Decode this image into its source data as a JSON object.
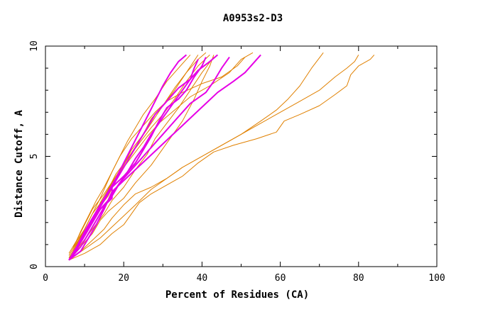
{
  "chart_data": {
    "type": "line",
    "title": "A0953s2-D3",
    "xlabel": "Percent of Residues (CA)",
    "ylabel": "Distance Cutoff, A",
    "xlim": [
      0,
      100
    ],
    "ylim": [
      0,
      10
    ],
    "x_major_ticks": [
      0,
      20,
      40,
      60,
      80,
      100
    ],
    "x_tick_labels": [
      "0",
      "20",
      "40",
      "60",
      "80",
      "100"
    ],
    "y_major_ticks": [
      0,
      5,
      10
    ],
    "y_tick_labels": [
      "0",
      "5",
      "10"
    ],
    "x_minor_step": 10,
    "y_minor_step": 1,
    "colors": {
      "highlight": "#e600e6",
      "other": "#e08000",
      "frame": "#000000"
    },
    "series": [
      {
        "name": "orange-1",
        "group": "other",
        "points": [
          [
            6,
            0.4
          ],
          [
            9,
            0.9
          ],
          [
            12,
            1.5
          ],
          [
            14,
            2.1
          ],
          [
            16,
            2.5
          ],
          [
            20,
            3.1
          ],
          [
            23,
            3.8
          ],
          [
            27,
            4.6
          ],
          [
            31,
            5.6
          ],
          [
            35,
            6.6
          ],
          [
            38,
            7.6
          ],
          [
            40,
            8.4
          ],
          [
            42,
            9.1
          ],
          [
            43,
            9.6
          ]
        ]
      },
      {
        "name": "orange-2",
        "group": "other",
        "points": [
          [
            6,
            0.6
          ],
          [
            8,
            1.2
          ],
          [
            10,
            1.9
          ],
          [
            12,
            2.6
          ],
          [
            15,
            3.3
          ],
          [
            18,
            4.1
          ],
          [
            21,
            4.9
          ],
          [
            24,
            5.7
          ],
          [
            27,
            6.5
          ],
          [
            30,
            7.3
          ],
          [
            33,
            8.1
          ],
          [
            36,
            8.8
          ],
          [
            39,
            9.4
          ],
          [
            41,
            9.7
          ]
        ]
      },
      {
        "name": "orange-3",
        "group": "other",
        "points": [
          [
            7,
            0.8
          ],
          [
            9,
            1.6
          ],
          [
            11,
            2.3
          ],
          [
            13,
            3.0
          ],
          [
            15,
            3.6
          ],
          [
            17,
            4.3
          ],
          [
            19,
            5.0
          ],
          [
            21,
            5.7
          ],
          [
            23,
            6.3
          ],
          [
            25,
            6.9
          ],
          [
            28,
            7.6
          ],
          [
            31,
            8.4
          ],
          [
            34,
            9.0
          ],
          [
            37,
            9.6
          ]
        ]
      },
      {
        "name": "orange-4",
        "group": "other",
        "points": [
          [
            6,
            0.5
          ],
          [
            8,
            1.1
          ],
          [
            11,
            1.8
          ],
          [
            13,
            2.5
          ],
          [
            16,
            3.2
          ],
          [
            18,
            3.9
          ],
          [
            20,
            4.6
          ],
          [
            22,
            5.3
          ],
          [
            25,
            6.0
          ],
          [
            27,
            6.7
          ],
          [
            30,
            7.3
          ],
          [
            33,
            8.0
          ],
          [
            36,
            8.8
          ],
          [
            39,
            9.6
          ]
        ]
      },
      {
        "name": "orange-5",
        "group": "other",
        "points": [
          [
            7,
            0.7
          ],
          [
            9,
            1.4
          ],
          [
            12,
            2.1
          ],
          [
            14,
            2.9
          ],
          [
            16,
            3.5
          ],
          [
            18,
            4.2
          ],
          [
            21,
            4.9
          ],
          [
            24,
            5.6
          ],
          [
            27,
            6.3
          ],
          [
            30,
            6.9
          ],
          [
            33,
            7.6
          ],
          [
            36,
            8.4
          ],
          [
            39,
            9.1
          ],
          [
            42,
            9.6
          ]
        ]
      },
      {
        "name": "orange-6",
        "group": "other",
        "points": [
          [
            6,
            0.3
          ],
          [
            9,
            1.0
          ],
          [
            12,
            1.7
          ],
          [
            15,
            2.4
          ],
          [
            17,
            3.0
          ],
          [
            20,
            3.6
          ],
          [
            23,
            4.4
          ],
          [
            26,
            5.1
          ],
          [
            28,
            5.8
          ],
          [
            31,
            6.5
          ],
          [
            34,
            7.2
          ],
          [
            37,
            8.0
          ],
          [
            40,
            8.8
          ],
          [
            43,
            9.5
          ]
        ]
      },
      {
        "name": "orange-7",
        "group": "other",
        "points": [
          [
            7,
            0.9
          ],
          [
            10,
            1.7
          ],
          [
            12,
            2.4
          ],
          [
            15,
            3.1
          ],
          [
            17,
            3.8
          ],
          [
            20,
            4.5
          ],
          [
            23,
            5.2
          ],
          [
            26,
            5.9
          ],
          [
            29,
            6.5
          ],
          [
            33,
            7.1
          ],
          [
            37,
            7.7
          ],
          [
            42,
            8.2
          ],
          [
            47,
            8.8
          ],
          [
            50,
            9.4
          ],
          [
            53,
            9.7
          ]
        ]
      },
      {
        "name": "orange-8",
        "group": "other",
        "points": [
          [
            6,
            0.4
          ],
          [
            8,
            1.0
          ],
          [
            10,
            1.7
          ],
          [
            12,
            2.4
          ],
          [
            14,
            3.1
          ],
          [
            17,
            4.3
          ],
          [
            19,
            5.0
          ],
          [
            22,
            5.8
          ],
          [
            25,
            6.4
          ],
          [
            28,
            7.0
          ],
          [
            31,
            7.5
          ],
          [
            35,
            7.9
          ],
          [
            40,
            8.3
          ],
          [
            45,
            8.6
          ],
          [
            49,
            9.1
          ],
          [
            51,
            9.5
          ]
        ]
      },
      {
        "name": "orange-9",
        "group": "other",
        "points": [
          [
            6,
            0.3
          ],
          [
            10,
            0.8
          ],
          [
            14,
            1.3
          ],
          [
            17,
            1.8
          ],
          [
            20,
            2.3
          ],
          [
            23,
            2.8
          ],
          [
            27,
            3.5
          ],
          [
            31,
            4.0
          ],
          [
            35,
            4.5
          ],
          [
            40,
            5.0
          ],
          [
            45,
            5.5
          ],
          [
            50,
            6.0
          ],
          [
            55,
            6.6
          ],
          [
            59,
            7.1
          ],
          [
            62,
            7.6
          ],
          [
            65,
            8.2
          ],
          [
            68,
            9.0
          ],
          [
            71,
            9.7
          ]
        ]
      },
      {
        "name": "orange-10",
        "group": "other",
        "points": [
          [
            6,
            0.3
          ],
          [
            9,
            0.7
          ],
          [
            12,
            1.2
          ],
          [
            15,
            1.7
          ],
          [
            17,
            2.2
          ],
          [
            20,
            2.8
          ],
          [
            23,
            3.3
          ],
          [
            27,
            3.6
          ],
          [
            31,
            4.0
          ],
          [
            35,
            4.5
          ],
          [
            40,
            5.0
          ],
          [
            45,
            5.5
          ],
          [
            50,
            6.0
          ],
          [
            55,
            6.5
          ],
          [
            60,
            7.0
          ],
          [
            65,
            7.5
          ],
          [
            70,
            8.0
          ],
          [
            74,
            8.6
          ],
          [
            77,
            9.0
          ],
          [
            79,
            9.3
          ],
          [
            80,
            9.6
          ]
        ]
      },
      {
        "name": "orange-11",
        "group": "other",
        "points": [
          [
            6,
            0.3
          ],
          [
            10,
            0.6
          ],
          [
            14,
            1.0
          ],
          [
            17,
            1.5
          ],
          [
            20,
            1.9
          ],
          [
            22,
            2.4
          ],
          [
            24,
            2.9
          ],
          [
            27,
            3.3
          ],
          [
            31,
            3.7
          ],
          [
            35,
            4.1
          ],
          [
            39,
            4.7
          ],
          [
            43,
            5.2
          ],
          [
            48,
            5.5
          ],
          [
            54,
            5.8
          ],
          [
            59,
            6.1
          ],
          [
            61,
            6.6
          ],
          [
            65,
            6.9
          ],
          [
            70,
            7.3
          ],
          [
            74,
            7.8
          ],
          [
            77,
            8.2
          ],
          [
            78,
            8.7
          ],
          [
            80,
            9.1
          ],
          [
            83,
            9.4
          ],
          [
            84,
            9.6
          ]
        ]
      },
      {
        "name": "magenta-1",
        "group": "highlight",
        "points": [
          [
            6,
            0.3
          ],
          [
            8,
            0.9
          ],
          [
            10,
            1.6
          ],
          [
            12,
            2.2
          ],
          [
            14,
            2.8
          ],
          [
            16,
            3.4
          ],
          [
            18,
            4.0
          ],
          [
            20,
            4.7
          ],
          [
            22,
            5.4
          ],
          [
            24,
            6.1
          ],
          [
            26,
            6.8
          ],
          [
            28,
            7.5
          ],
          [
            30,
            8.2
          ],
          [
            32,
            8.8
          ],
          [
            34,
            9.3
          ],
          [
            36,
            9.6
          ]
        ]
      },
      {
        "name": "magenta-2",
        "group": "highlight",
        "points": [
          [
            6,
            0.3
          ],
          [
            8,
            0.8
          ],
          [
            10,
            1.4
          ],
          [
            12,
            2.0
          ],
          [
            14,
            2.6
          ],
          [
            17,
            3.1
          ],
          [
            17,
            3.6
          ],
          [
            20,
            4.1
          ],
          [
            23,
            4.7
          ],
          [
            25,
            5.3
          ],
          [
            27,
            5.9
          ],
          [
            29,
            6.6
          ],
          [
            31,
            7.2
          ],
          [
            34,
            7.6
          ],
          [
            36,
            8.0
          ],
          [
            38,
            8.6
          ],
          [
            40,
            9.1
          ],
          [
            41,
            9.5
          ]
        ]
      },
      {
        "name": "magenta-3",
        "group": "highlight",
        "points": [
          [
            6,
            0.3
          ],
          [
            9,
            0.9
          ],
          [
            11,
            1.5
          ],
          [
            13,
            2.1
          ],
          [
            15,
            2.7
          ],
          [
            17,
            3.3
          ],
          [
            19,
            3.8
          ],
          [
            22,
            4.4
          ],
          [
            25,
            5.0
          ],
          [
            28,
            5.6
          ],
          [
            31,
            6.2
          ],
          [
            34,
            6.8
          ],
          [
            37,
            7.4
          ],
          [
            41,
            7.9
          ],
          [
            43,
            8.4
          ],
          [
            45,
            9.0
          ],
          [
            47,
            9.5
          ]
        ]
      },
      {
        "name": "magenta-4",
        "group": "highlight",
        "points": [
          [
            6,
            0.3
          ],
          [
            9,
            0.7
          ],
          [
            11,
            1.3
          ],
          [
            13,
            1.9
          ],
          [
            15,
            2.6
          ],
          [
            17,
            3.4
          ],
          [
            20,
            3.9
          ],
          [
            23,
            4.4
          ],
          [
            26,
            4.9
          ],
          [
            29,
            5.4
          ],
          [
            32,
            5.9
          ],
          [
            35,
            6.4
          ],
          [
            38,
            6.9
          ],
          [
            41,
            7.4
          ],
          [
            44,
            7.9
          ],
          [
            48,
            8.4
          ],
          [
            51,
            8.8
          ],
          [
            53,
            9.2
          ],
          [
            55,
            9.6
          ]
        ]
      },
      {
        "name": "magenta-5",
        "group": "highlight",
        "points": [
          [
            6,
            0.3
          ],
          [
            8,
            0.9
          ],
          [
            10,
            1.5
          ],
          [
            12,
            2.1
          ],
          [
            14,
            2.7
          ],
          [
            16,
            3.3
          ],
          [
            18,
            3.9
          ],
          [
            20,
            4.5
          ],
          [
            22,
            5.1
          ],
          [
            24,
            5.7
          ],
          [
            26,
            6.3
          ],
          [
            28,
            6.9
          ],
          [
            31,
            7.5
          ],
          [
            34,
            8.1
          ],
          [
            37,
            8.5
          ],
          [
            39,
            8.9
          ],
          [
            42,
            9.3
          ],
          [
            44,
            9.6
          ]
        ]
      },
      {
        "name": "magenta-6",
        "group": "highlight",
        "points": [
          [
            6,
            0.3
          ],
          [
            8,
            0.8
          ],
          [
            10,
            1.4
          ],
          [
            12,
            2.0
          ],
          [
            14,
            2.6
          ],
          [
            17,
            3.2
          ],
          [
            19,
            3.8
          ],
          [
            21,
            4.3
          ],
          [
            23,
            4.9
          ],
          [
            25,
            5.4
          ],
          [
            27,
            6.0
          ],
          [
            29,
            6.5
          ],
          [
            31,
            7.0
          ],
          [
            33,
            7.5
          ],
          [
            35,
            8.0
          ],
          [
            37,
            8.5
          ],
          [
            38,
            9.0
          ],
          [
            39,
            9.4
          ]
        ]
      }
    ]
  }
}
